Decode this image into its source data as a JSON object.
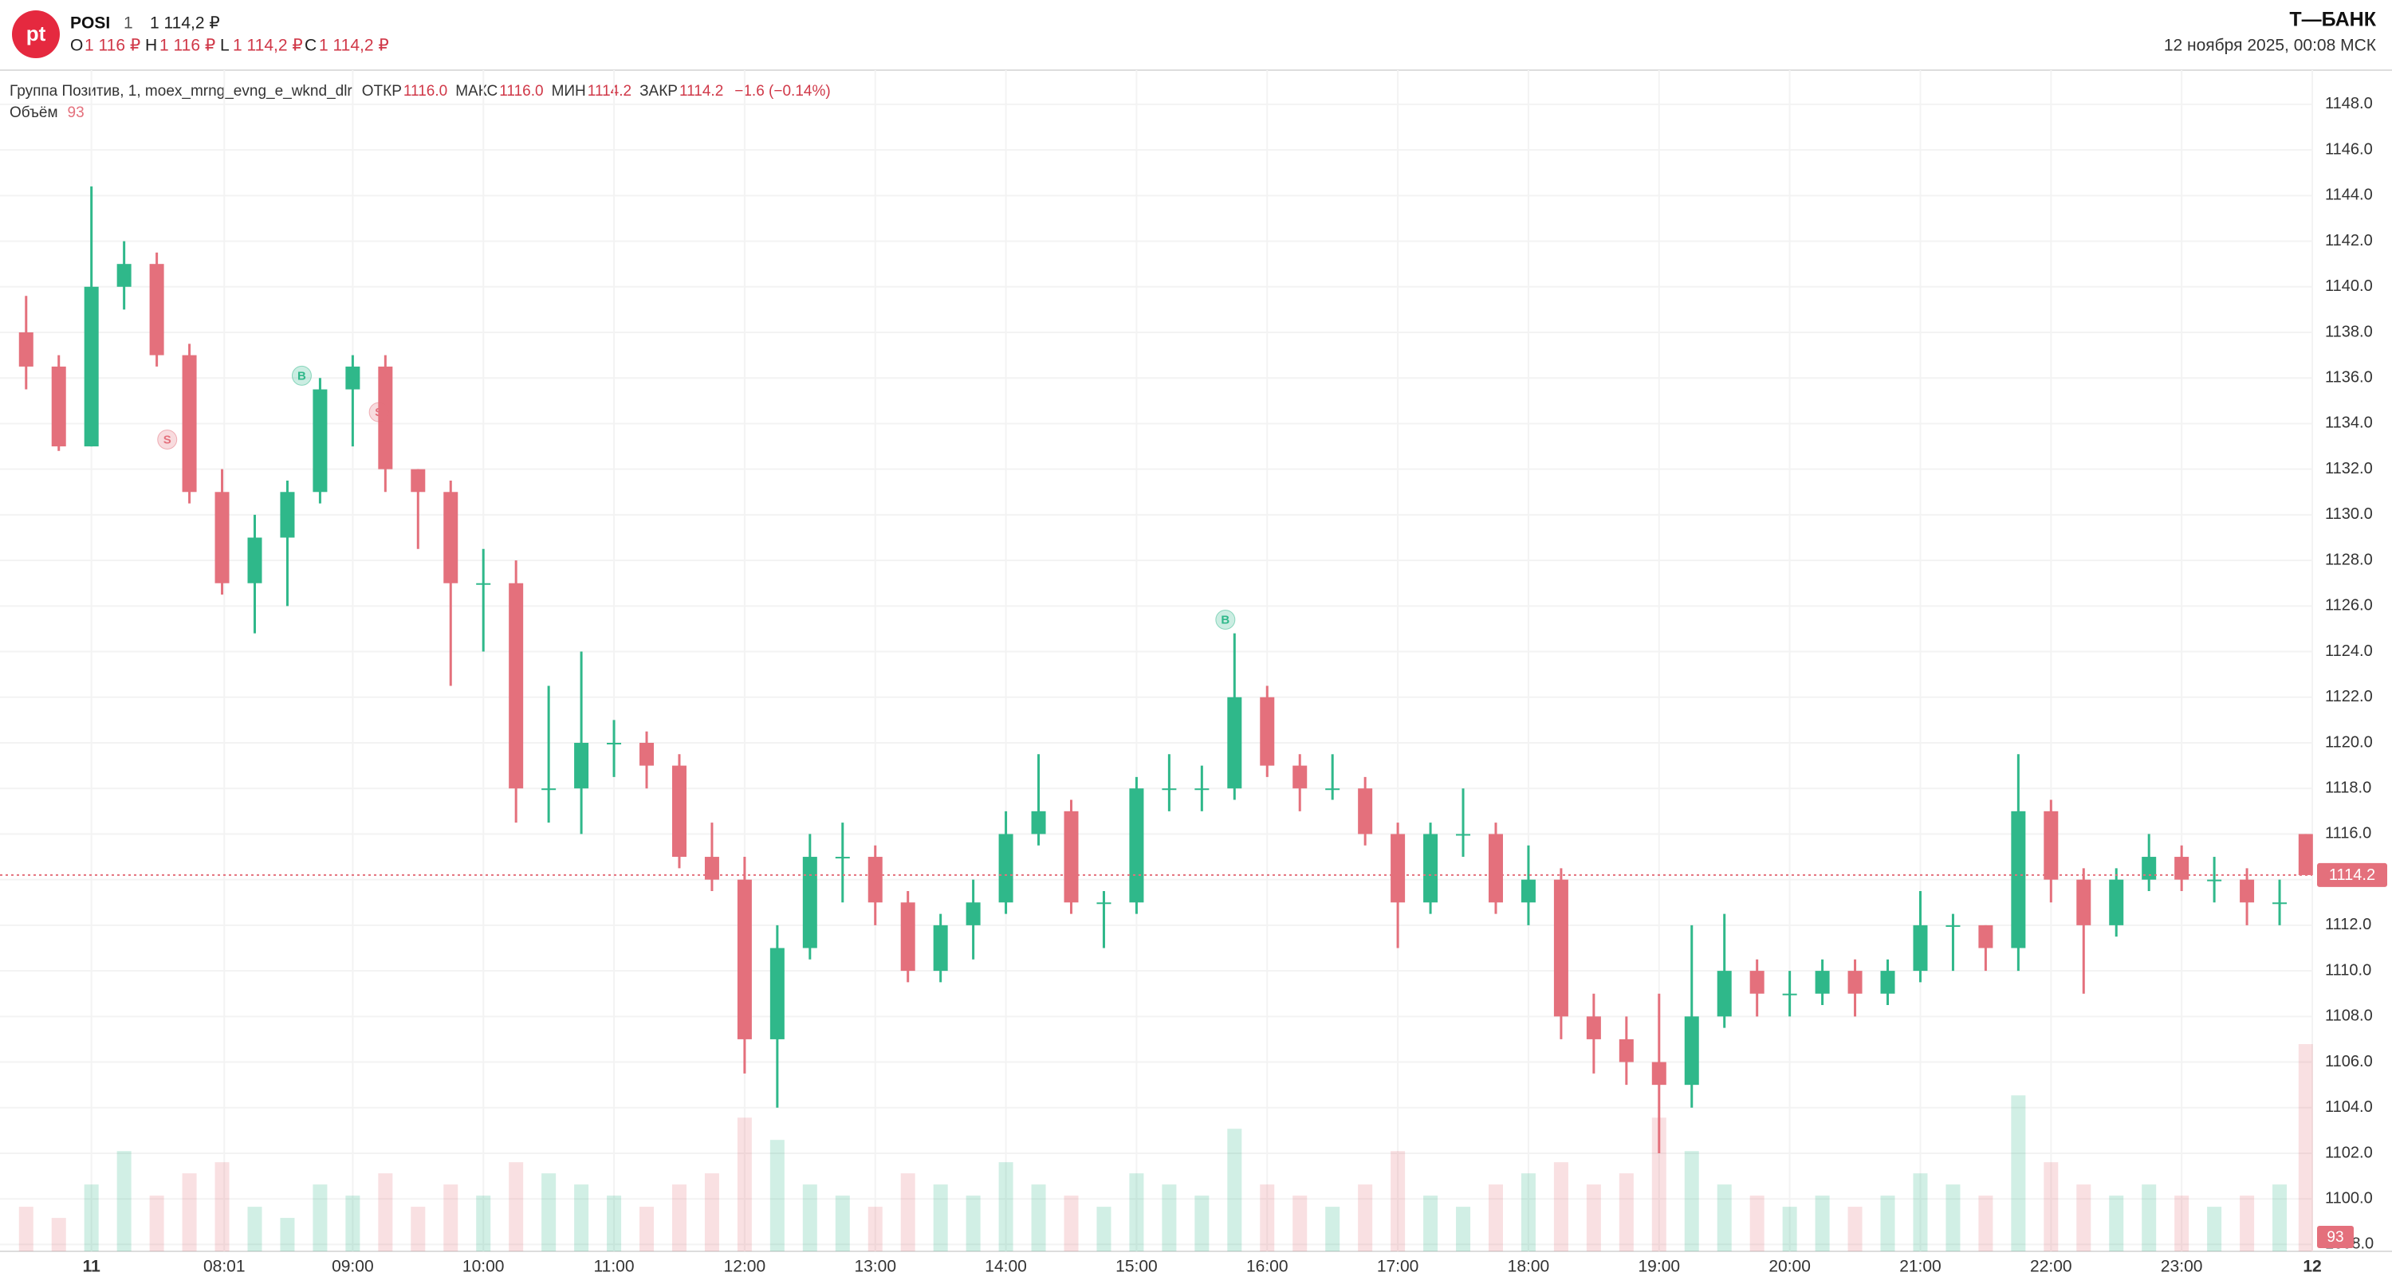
{
  "header": {
    "logo": "pt",
    "ticker": "POSI",
    "interval": "1",
    "price": "1 114,2 ₽",
    "ohlc": [
      {
        "label": "O",
        "value": "1 116 ₽"
      },
      {
        "label": "H",
        "value": "1 116 ₽"
      },
      {
        "label": "L",
        "value": "1 114,2 ₽"
      },
      {
        "label": "C",
        "value": "1 114,2 ₽"
      }
    ],
    "brand": "Т—БАНК",
    "datetime": "12 ноября 2025, 00:08 МСК"
  },
  "chart_data": {
    "type": "candlestick",
    "title": "Группа Позитив, 1, moex_mrng_evng_e_wknd_dlr",
    "stats": [
      {
        "label": "ОТКР",
        "value": "1116.0"
      },
      {
        "label": "МАКС",
        "value": "1116.0"
      },
      {
        "label": "МИН",
        "value": "1114.2"
      },
      {
        "label": "ЗАКР",
        "value": "1114.2"
      }
    ],
    "change": "−1.6 (−0.14%)",
    "volume_label": "Объём",
    "up_color": "#2fb88a",
    "down_color": "#e4707c",
    "x": [
      6.5,
      6.75,
      7,
      7.25,
      7.5,
      7.75,
      8,
      8.25,
      8.5,
      8.75,
      9,
      9.25,
      9.5,
      9.75,
      10,
      10.25,
      10.5,
      10.75,
      11,
      11.25,
      11.5,
      11.75,
      12,
      12.25,
      12.5,
      12.75,
      13,
      13.25,
      13.5,
      13.75,
      14,
      14.25,
      14.5,
      14.75,
      15,
      15.25,
      15.5,
      15.75,
      16,
      16.25,
      16.5,
      16.75,
      17,
      17.25,
      17.5,
      17.75,
      18,
      18.25,
      18.5,
      18.75,
      19,
      19.25,
      19.5,
      19.75,
      20,
      20.25,
      20.5,
      20.75,
      21,
      21.25,
      21.5,
      21.75,
      22,
      22.25,
      22.5,
      22.75,
      23,
      23.25,
      23.5,
      23.75,
      23.95
    ],
    "open": [
      1138,
      1136.5,
      1133,
      1140,
      1141,
      1137,
      1131,
      1127,
      1129,
      1131,
      1135.5,
      1136.5,
      1132,
      1131,
      1127,
      1127,
      1118,
      1118,
      1120,
      1120,
      1119,
      1115,
      1114,
      1107,
      1111,
      1115,
      1115,
      1113,
      1110,
      1112,
      1113,
      1116,
      1117,
      1113,
      1113,
      1118,
      1118,
      1118,
      1122,
      1119,
      1118,
      1118,
      1116,
      1113,
      1116,
      1116,
      1113,
      1114,
      1108,
      1107,
      1106,
      1105,
      1108,
      1110,
      1109,
      1109,
      1110,
      1109,
      1110,
      1112,
      1112,
      1111,
      1117,
      1114,
      1112,
      1114,
      1115,
      1114,
      1114,
      1113,
      1116
    ],
    "high": [
      1139.6,
      1137,
      1144.4,
      1142,
      1141.5,
      1137.5,
      1132,
      1130,
      1131.5,
      1136,
      1137,
      1137,
      1132,
      1131.5,
      1128.5,
      1128,
      1122.5,
      1124,
      1121,
      1120.5,
      1119.5,
      1116.5,
      1115,
      1112,
      1116,
      1116.5,
      1115.5,
      1113.5,
      1112.5,
      1114,
      1117,
      1119.5,
      1117.5,
      1113.5,
      1118.5,
      1119.5,
      1119,
      1124.8,
      1122.5,
      1119.5,
      1119.5,
      1118.5,
      1116.5,
      1116.5,
      1118,
      1116.5,
      1115.5,
      1114.5,
      1109,
      1108,
      1109,
      1112,
      1112.5,
      1110.5,
      1110,
      1110.5,
      1110.5,
      1110.5,
      1113.5,
      1112.5,
      1112,
      1119.5,
      1117.5,
      1114.5,
      1114.5,
      1116,
      1115.5,
      1115,
      1114.5,
      1114,
      1116
    ],
    "low": [
      1135.5,
      1132.8,
      1133,
      1139,
      1136.5,
      1130.5,
      1126.5,
      1124.8,
      1126,
      1130.5,
      1133,
      1131,
      1128.5,
      1122.5,
      1124,
      1116.5,
      1116.5,
      1116,
      1118.5,
      1118,
      1114.5,
      1113.5,
      1105.5,
      1104,
      1110.5,
      1113,
      1112,
      1109.5,
      1109.5,
      1110.5,
      1112.5,
      1115.5,
      1112.5,
      1111,
      1112.5,
      1117,
      1117,
      1117.5,
      1118.5,
      1117,
      1117.5,
      1115.5,
      1111,
      1112.5,
      1115,
      1112.5,
      1112,
      1107,
      1105.5,
      1105,
      1102,
      1104,
      1107.5,
      1108,
      1108,
      1108.5,
      1108,
      1108.5,
      1109.5,
      1110,
      1110,
      1110,
      1113,
      1109,
      1111.5,
      1113.5,
      1113.5,
      1113,
      1112,
      1112,
      1114.2
    ],
    "close": [
      1136.5,
      1133,
      1140,
      1141,
      1137,
      1131,
      1127,
      1129,
      1131,
      1135.5,
      1136.5,
      1132,
      1131,
      1127,
      1127,
      1118,
      1118,
      1120,
      1120,
      1119,
      1115,
      1114,
      1107,
      1111,
      1115,
      1115,
      1113,
      1110,
      1112,
      1113,
      1116,
      1117,
      1113,
      1113,
      1118,
      1118,
      1118,
      1122,
      1119,
      1118,
      1118,
      1116,
      1113,
      1116,
      1116,
      1113,
      1114,
      1108,
      1107,
      1106,
      1105,
      1108,
      1110,
      1109,
      1109,
      1110,
      1109,
      1110,
      1112,
      1112,
      1111,
      1117,
      1114,
      1112,
      1114,
      1115,
      1114,
      1114,
      1113,
      1113,
      1114.2
    ],
    "volume": [
      20,
      15,
      30,
      45,
      25,
      35,
      40,
      20,
      15,
      30,
      25,
      35,
      20,
      30,
      25,
      40,
      35,
      30,
      25,
      20,
      30,
      35,
      60,
      50,
      30,
      25,
      20,
      35,
      30,
      25,
      40,
      30,
      25,
      20,
      35,
      30,
      25,
      55,
      30,
      25,
      20,
      30,
      45,
      25,
      20,
      30,
      35,
      40,
      30,
      35,
      60,
      45,
      30,
      25,
      20,
      25,
      20,
      25,
      35,
      30,
      25,
      70,
      40,
      30,
      25,
      30,
      25,
      20,
      25,
      30,
      93
    ],
    "markers": [
      {
        "label": "S",
        "x": 7.58,
        "y": 1133.3,
        "color": "#e4707c"
      },
      {
        "label": "B",
        "x": 8.61,
        "y": 1136.1,
        "color": "#2fb88a"
      },
      {
        "label": "S",
        "x": 9.2,
        "y": 1134.5,
        "color": "#e4707c"
      },
      {
        "label": "B",
        "x": 15.68,
        "y": 1125.4,
        "color": "#2fb88a"
      }
    ],
    "xlim": [
      6.3,
      24
    ],
    "xticks": [
      {
        "value": 7,
        "label": "11"
      },
      {
        "value": 8.0167,
        "label": "08:01"
      },
      {
        "value": 9,
        "label": "09:00"
      },
      {
        "value": 10,
        "label": "10:00"
      },
      {
        "value": 11,
        "label": "11:00"
      },
      {
        "value": 12,
        "label": "12:00"
      },
      {
        "value": 13,
        "label": "13:00"
      },
      {
        "value": 14,
        "label": "14:00"
      },
      {
        "value": 15,
        "label": "15:00"
      },
      {
        "value": 16,
        "label": "16:00"
      },
      {
        "value": 17,
        "label": "17:00"
      },
      {
        "value": 18,
        "label": "18:00"
      },
      {
        "value": 19,
        "label": "19:00"
      },
      {
        "value": 20,
        "label": "20:00"
      },
      {
        "value": 21,
        "label": "21:00"
      },
      {
        "value": 22,
        "label": "22:00"
      },
      {
        "value": 23,
        "label": "23:00"
      },
      {
        "value": 24,
        "label": "12"
      }
    ],
    "ylim": [
      1097.7,
      1149.5
    ],
    "yticks": [
      {
        "value": 1098,
        "label": "1098.0"
      },
      {
        "value": 1100,
        "label": "1100.0"
      },
      {
        "value": 1102,
        "label": "1102.0"
      },
      {
        "value": 1104,
        "label": "1104.0"
      },
      {
        "value": 1106,
        "label": "1106.0"
      },
      {
        "value": 1108,
        "label": "1108.0"
      },
      {
        "value": 1110,
        "label": "1110.0"
      },
      {
        "value": 1112,
        "label": "1112.0"
      },
      {
        "value": 1114,
        "label": "1114.0"
      },
      {
        "value": 1116,
        "label": "1116.0"
      },
      {
        "value": 1118,
        "label": "1118.0"
      },
      {
        "value": 1120,
        "label": "1120.0"
      },
      {
        "value": 1122,
        "label": "1122.0"
      },
      {
        "value": 1124,
        "label": "1124.0"
      },
      {
        "value": 1126,
        "label": "1126.0"
      },
      {
        "value": 1128,
        "label": "1128.0"
      },
      {
        "value": 1130,
        "label": "1130.0"
      },
      {
        "value": 1132,
        "label": "1132.0"
      },
      {
        "value": 1134,
        "label": "1134.0"
      },
      {
        "value": 1136,
        "label": "1136.0"
      },
      {
        "value": 1138,
        "label": "1138.0"
      },
      {
        "value": 1140,
        "label": "1140.0"
      },
      {
        "value": 1142,
        "label": "1142.0"
      },
      {
        "value": 1144,
        "label": "1144.0"
      },
      {
        "value": 1146,
        "label": "1146.0"
      },
      {
        "value": 1148,
        "label": "1148.0"
      }
    ],
    "grid": true
  }
}
